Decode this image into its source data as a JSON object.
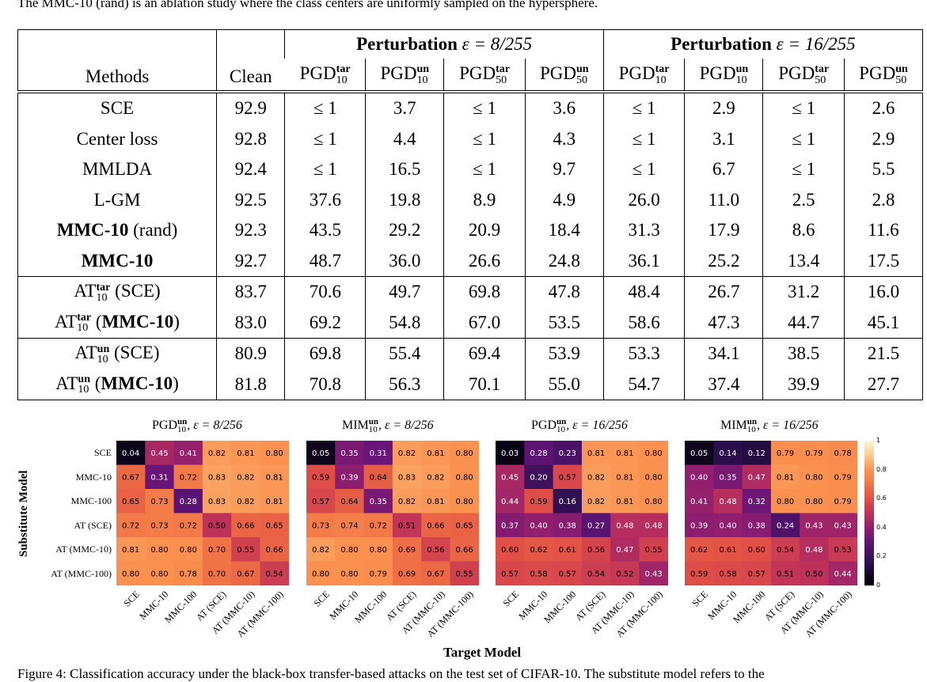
{
  "caption_top": "The MMC-10 (rand) is an ablation study where the class centers are uniformly sampled on the hypersphere.",
  "table": {
    "col_methods": "Methods",
    "col_clean": "Clean",
    "group1_title": "Perturbation",
    "group1_eps": "ε = 8/255",
    "group2_title": "Perturbation",
    "group2_eps": "ε = 16/255",
    "attack_cols": [
      {
        "base": "PGD",
        "sup": "tar",
        "sub": "10"
      },
      {
        "base": "PGD",
        "sup": "un",
        "sub": "10"
      },
      {
        "base": "PGD",
        "sup": "tar",
        "sub": "50"
      },
      {
        "base": "PGD",
        "sup": "un",
        "sub": "50"
      }
    ],
    "rows": [
      {
        "method": "SCE",
        "bold": false,
        "clean": "92.9",
        "vals": [
          "≤ 1",
          "3.7",
          "≤ 1",
          "3.6",
          "≤ 1",
          "2.9",
          "≤ 1",
          "2.6"
        ],
        "bold_vals": []
      },
      {
        "method": "Center loss",
        "bold": false,
        "clean": "92.8",
        "vals": [
          "≤ 1",
          "4.4",
          "≤ 1",
          "4.3",
          "≤ 1",
          "3.1",
          "≤ 1",
          "2.9"
        ],
        "bold_vals": []
      },
      {
        "method": "MMLDA",
        "bold": false,
        "clean": "92.4",
        "vals": [
          "≤ 1",
          "16.5",
          "≤ 1",
          "9.7",
          "≤ 1",
          "6.7",
          "≤ 1",
          "5.5"
        ],
        "bold_vals": []
      },
      {
        "method": "L-GM",
        "bold": false,
        "clean": "92.5",
        "vals": [
          "37.6",
          "19.8",
          "8.9",
          "4.9",
          "26.0",
          "11.0",
          "2.5",
          "2.8"
        ],
        "bold_vals": []
      },
      {
        "method_bold": "MMC-10",
        "method_rest": " (rand)",
        "clean": "92.3",
        "vals": [
          "43.5",
          "29.2",
          "20.9",
          "18.4",
          "31.3",
          "17.9",
          "8.6",
          "11.6"
        ],
        "bold_vals": []
      },
      {
        "method_bold": "MMC-10",
        "method_rest": "",
        "clean": "92.7",
        "vals": [
          "48.7",
          "36.0",
          "26.6",
          "24.8",
          "36.1",
          "25.2",
          "13.4",
          "17.5"
        ],
        "bold_vals": [
          0,
          1,
          2,
          3,
          4,
          5,
          6,
          7
        ]
      },
      {
        "at": true,
        "at_sup": "tar",
        "at_sub": "10",
        "paren": "SCE",
        "paren_bold": false,
        "clean": "83.7",
        "vals": [
          "70.6",
          "49.7",
          "69.8",
          "47.8",
          "48.4",
          "26.7",
          "31.2",
          "16.0"
        ],
        "bold_vals": [
          0,
          2
        ]
      },
      {
        "at": true,
        "at_sup": "tar",
        "at_sub": "10",
        "paren": "MMC-10",
        "paren_bold": true,
        "clean": "83.0",
        "vals": [
          "69.2",
          "54.8",
          "67.0",
          "53.5",
          "58.6",
          "47.3",
          "44.7",
          "45.1"
        ],
        "bold_vals": [
          1,
          3,
          4,
          5,
          6,
          7
        ]
      },
      {
        "at": true,
        "at_sup": "un",
        "at_sub": "10",
        "paren": "SCE",
        "paren_bold": false,
        "clean": "80.9",
        "vals": [
          "69.8",
          "55.4",
          "69.4",
          "53.9",
          "53.3",
          "34.1",
          "38.5",
          "21.5"
        ],
        "bold_vals": []
      },
      {
        "at": true,
        "at_sup": "un",
        "at_sub": "10",
        "paren": "MMC-10",
        "paren_bold": true,
        "clean": "81.8",
        "vals": [
          "70.8",
          "56.3",
          "70.1",
          "55.0",
          "54.7",
          "37.4",
          "39.9",
          "27.7"
        ],
        "bold_vals": [
          0,
          1,
          2,
          3,
          4,
          5,
          6,
          7
        ]
      }
    ]
  },
  "heatmaps": {
    "y_axis_label": "Substitute Model",
    "x_axis_label": "Target Model",
    "labels": [
      "SCE",
      "MMC-10",
      "MMC-100",
      "AT (SCE)",
      "AT (MMC-10)",
      "AT (MMC-100)"
    ],
    "colorbar_ticks": [
      "1",
      "0.8",
      "0.6",
      "0.4",
      "0.2",
      "0"
    ],
    "panels": [
      {
        "title_base": "PGD",
        "title_sup": "un",
        "title_sub": "10",
        "title_eps": ", ε = 8/256",
        "values": [
          [
            0.04,
            0.45,
            0.41,
            0.82,
            0.81,
            0.8
          ],
          [
            0.67,
            0.31,
            0.72,
            0.83,
            0.82,
            0.81
          ],
          [
            0.65,
            0.73,
            0.28,
            0.83,
            0.82,
            0.81
          ],
          [
            0.72,
            0.73,
            0.72,
            0.5,
            0.66,
            0.65
          ],
          [
            0.81,
            0.8,
            0.8,
            0.7,
            0.55,
            0.66
          ],
          [
            0.8,
            0.8,
            0.78,
            0.7,
            0.67,
            0.54
          ]
        ]
      },
      {
        "title_base": "MIM",
        "title_sup": "un",
        "title_sub": "10",
        "title_eps": ", ε = 8/256",
        "values": [
          [
            0.05,
            0.35,
            0.31,
            0.82,
            0.81,
            0.8
          ],
          [
            0.59,
            0.39,
            0.64,
            0.83,
            0.82,
            0.8
          ],
          [
            0.57,
            0.64,
            0.35,
            0.82,
            0.81,
            0.8
          ],
          [
            0.73,
            0.74,
            0.72,
            0.51,
            0.66,
            0.65
          ],
          [
            0.82,
            0.8,
            0.8,
            0.69,
            0.56,
            0.66
          ],
          [
            0.8,
            0.8,
            0.79,
            0.69,
            0.67,
            0.55
          ]
        ]
      },
      {
        "title_base": "PGD",
        "title_sup": "un",
        "title_sub": "10",
        "title_eps": ", ε = 16/256",
        "values": [
          [
            0.03,
            0.28,
            0.23,
            0.81,
            0.81,
            0.8
          ],
          [
            0.45,
            0.2,
            0.57,
            0.82,
            0.81,
            0.8
          ],
          [
            0.44,
            0.59,
            0.16,
            0.82,
            0.81,
            0.8
          ],
          [
            0.37,
            0.4,
            0.38,
            0.27,
            0.48,
            0.48
          ],
          [
            0.6,
            0.62,
            0.61,
            0.56,
            0.47,
            0.55
          ],
          [
            0.57,
            0.58,
            0.57,
            0.54,
            0.52,
            0.43
          ]
        ]
      },
      {
        "title_base": "MIM",
        "title_sup": "un",
        "title_sub": "10",
        "title_eps": ", ε = 16/256",
        "values": [
          [
            0.05,
            0.14,
            0.12,
            0.79,
            0.79,
            0.78
          ],
          [
            0.4,
            0.35,
            0.47,
            0.81,
            0.8,
            0.79
          ],
          [
            0.41,
            0.48,
            0.32,
            0.8,
            0.8,
            0.79
          ],
          [
            0.39,
            0.4,
            0.38,
            0.24,
            0.43,
            0.43
          ],
          [
            0.62,
            0.61,
            0.6,
            0.54,
            0.48,
            0.53
          ],
          [
            0.59,
            0.58,
            0.57,
            0.51,
            0.5,
            0.44
          ]
        ]
      }
    ]
  },
  "caption_bottom": "Figure 4: Classification accuracy under the black-box transfer-based attacks on the test set of CIFAR-10. The substitute model refers to the"
}
